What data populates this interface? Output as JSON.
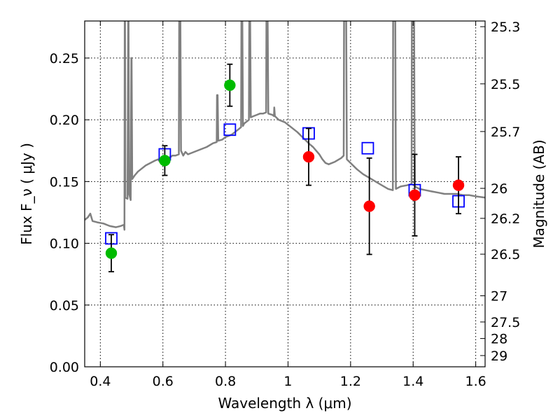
{
  "chart_data": {
    "type": "scatter",
    "xlabel": "Wavelength  λ (μm)",
    "ylabel": "Flux  F_ν  ( μJy )",
    "y2label": "Magnitude (AB)",
    "xlim": [
      0.35,
      1.63
    ],
    "ylim": [
      0.0,
      0.28
    ],
    "grid": true,
    "x_ticks": [
      0.4,
      0.6,
      0.8,
      1,
      1.2,
      1.4,
      1.6
    ],
    "x_tick_labels": [
      "0.4",
      "0.6",
      "0.8",
      "1",
      "1.2",
      "1.4",
      "1.6"
    ],
    "y_ticks": [
      0.0,
      0.05,
      0.1,
      0.15,
      0.2,
      0.25
    ],
    "y_tick_labels": [
      "0.00",
      "0.05",
      "0.10",
      "0.15",
      "0.20",
      "0.25"
    ],
    "magnitude_ticks": [
      {
        "label": "25.3",
        "flux": 0.2754
      },
      {
        "label": "25.5",
        "flux": 0.2291
      },
      {
        "label": "25.7",
        "flux": 0.1905
      },
      {
        "label": "26",
        "flux": 0.1445
      },
      {
        "label": "26.2",
        "flux": 0.1202
      },
      {
        "label": "26.5",
        "flux": 0.0912
      },
      {
        "label": "27",
        "flux": 0.0575
      },
      {
        "label": "27.5",
        "flux": 0.0363
      },
      {
        "label": "28",
        "flux": 0.0229
      },
      {
        "label": "29",
        "flux": 0.0091
      }
    ],
    "colors": {
      "green_points": "#00bb00",
      "red_points": "#ff0000",
      "model_boxes": "#0000ff",
      "sed_model": "#808080",
      "error_bars": "#000000"
    },
    "series": [
      {
        "marker": "circle-green",
        "points": [
          {
            "x": 0.435,
            "y": 0.092,
            "yerr": 0.015
          },
          {
            "x": 0.606,
            "y": 0.167,
            "yerr": 0.012
          },
          {
            "x": 0.814,
            "y": 0.228,
            "yerr": 0.017
          }
        ]
      },
      {
        "marker": "circle-red",
        "points": [
          {
            "x": 1.066,
            "y": 0.17,
            "yerr": 0.023
          },
          {
            "x": 1.26,
            "y": 0.13,
            "yerr": 0.039
          },
          {
            "x": 1.405,
            "y": 0.139,
            "yerr": 0.033
          },
          {
            "x": 1.545,
            "y": 0.147,
            "yerr": 0.023
          }
        ]
      },
      {
        "marker": "square-blue",
        "points": [
          {
            "x": 0.435,
            "y": 0.104
          },
          {
            "x": 0.606,
            "y": 0.172
          },
          {
            "x": 0.814,
            "y": 0.192
          },
          {
            "x": 1.066,
            "y": 0.189
          },
          {
            "x": 1.255,
            "y": 0.177
          },
          {
            "x": 1.405,
            "y": 0.143
          },
          {
            "x": 1.545,
            "y": 0.134
          }
        ]
      },
      {
        "marker": "line-gray",
        "points": [
          [
            0.35,
            0.119
          ],
          [
            0.36,
            0.121
          ],
          [
            0.368,
            0.124
          ],
          [
            0.375,
            0.118
          ],
          [
            0.39,
            0.117
          ],
          [
            0.41,
            0.116
          ],
          [
            0.43,
            0.114
          ],
          [
            0.45,
            0.113
          ],
          [
            0.465,
            0.114
          ],
          [
            0.475,
            0.115
          ],
          [
            0.477,
            0.111
          ],
          [
            0.478,
            0.28
          ],
          [
            0.479,
            0.28
          ],
          [
            0.48,
            0.137
          ],
          [
            0.487,
            0.136
          ],
          [
            0.489,
            0.28
          ],
          [
            0.49,
            0.28
          ],
          [
            0.492,
            0.14
          ],
          [
            0.497,
            0.135
          ],
          [
            0.499,
            0.25
          ],
          [
            0.5,
            0.25
          ],
          [
            0.502,
            0.152
          ],
          [
            0.51,
            0.155
          ],
          [
            0.52,
            0.158
          ],
          [
            0.53,
            0.16
          ],
          [
            0.545,
            0.163
          ],
          [
            0.56,
            0.165
          ],
          [
            0.575,
            0.167
          ],
          [
            0.585,
            0.168
          ],
          [
            0.59,
            0.166
          ],
          [
            0.6,
            0.167
          ],
          [
            0.615,
            0.169
          ],
          [
            0.625,
            0.17
          ],
          [
            0.63,
            0.171
          ],
          [
            0.64,
            0.171
          ],
          [
            0.651,
            0.172
          ],
          [
            0.652,
            0.28
          ],
          [
            0.656,
            0.28
          ],
          [
            0.658,
            0.175
          ],
          [
            0.665,
            0.171
          ],
          [
            0.672,
            0.174
          ],
          [
            0.68,
            0.172
          ],
          [
            0.7,
            0.174
          ],
          [
            0.72,
            0.176
          ],
          [
            0.74,
            0.178
          ],
          [
            0.76,
            0.181
          ],
          [
            0.772,
            0.182
          ],
          [
            0.773,
            0.22
          ],
          [
            0.775,
            0.22
          ],
          [
            0.777,
            0.183
          ],
          [
            0.79,
            0.184
          ],
          [
            0.8,
            0.186
          ],
          [
            0.82,
            0.188
          ],
          [
            0.84,
            0.192
          ],
          [
            0.85,
            0.194
          ],
          [
            0.851,
            0.28
          ],
          [
            0.854,
            0.28
          ],
          [
            0.856,
            0.195
          ],
          [
            0.86,
            0.197
          ],
          [
            0.87,
            0.199
          ],
          [
            0.875,
            0.2
          ],
          [
            0.876,
            0.28
          ],
          [
            0.879,
            0.28
          ],
          [
            0.881,
            0.202
          ],
          [
            0.89,
            0.203
          ],
          [
            0.9,
            0.204
          ],
          [
            0.91,
            0.205
          ],
          [
            0.92,
            0.205
          ],
          [
            0.93,
            0.206
          ],
          [
            0.931,
            0.28
          ],
          [
            0.935,
            0.28
          ],
          [
            0.937,
            0.205
          ],
          [
            0.95,
            0.204
          ],
          [
            0.955,
            0.203
          ],
          [
            0.956,
            0.21
          ],
          [
            0.958,
            0.203
          ],
          [
            0.97,
            0.2
          ],
          [
            0.99,
            0.198
          ],
          [
            1.01,
            0.194
          ],
          [
            1.03,
            0.19
          ],
          [
            1.05,
            0.185
          ],
          [
            1.07,
            0.18
          ],
          [
            1.08,
            0.178
          ],
          [
            1.09,
            0.175
          ],
          [
            1.1,
            0.172
          ],
          [
            1.11,
            0.168
          ],
          [
            1.12,
            0.165
          ],
          [
            1.13,
            0.164
          ],
          [
            1.15,
            0.166
          ],
          [
            1.17,
            0.169
          ],
          [
            1.178,
            0.171
          ],
          [
            1.179,
            0.28
          ],
          [
            1.186,
            0.28
          ],
          [
            1.188,
            0.168
          ],
          [
            1.2,
            0.165
          ],
          [
            1.22,
            0.16
          ],
          [
            1.24,
            0.156
          ],
          [
            1.26,
            0.153
          ],
          [
            1.28,
            0.15
          ],
          [
            1.3,
            0.147
          ],
          [
            1.32,
            0.144
          ],
          [
            1.335,
            0.143
          ],
          [
            1.336,
            0.28
          ],
          [
            1.343,
            0.28
          ],
          [
            1.345,
            0.144
          ],
          [
            1.36,
            0.146
          ],
          [
            1.38,
            0.147
          ],
          [
            1.395,
            0.148
          ],
          [
            1.396,
            0.28
          ],
          [
            1.403,
            0.28
          ],
          [
            1.405,
            0.146
          ],
          [
            1.42,
            0.144
          ],
          [
            1.44,
            0.143
          ],
          [
            1.46,
            0.142
          ],
          [
            1.48,
            0.141
          ],
          [
            1.5,
            0.14
          ],
          [
            1.52,
            0.14
          ],
          [
            1.54,
            0.14
          ],
          [
            1.56,
            0.139
          ],
          [
            1.58,
            0.139
          ],
          [
            1.6,
            0.138
          ],
          [
            1.63,
            0.137
          ]
        ]
      }
    ]
  }
}
